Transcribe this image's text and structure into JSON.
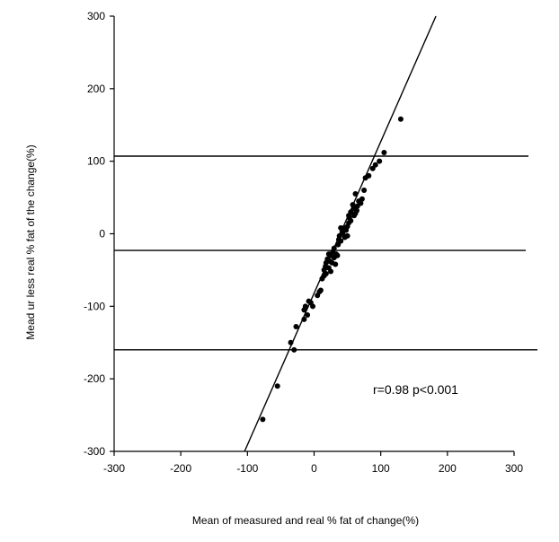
{
  "chart_data": {
    "type": "scatter",
    "xlabel": "Mean of measured and real % fat of change(%)",
    "ylabel": "Mead ur less real % fat of the change(%)",
    "xlim": [
      -300,
      300
    ],
    "ylim": [
      -300,
      300
    ],
    "xticks": [
      -300,
      -200,
      -100,
      0,
      100,
      200,
      300
    ],
    "yticks": [
      -300,
      -200,
      -100,
      0,
      100,
      200,
      300
    ],
    "annotation": "r=0.98 p<0.001",
    "grid": false,
    "reference_lines": [
      107,
      -23,
      -160
    ],
    "regression_line": {
      "slope": 2.09,
      "intercept": -82
    },
    "points": [
      [
        -77,
        -256
      ],
      [
        -55,
        -210
      ],
      [
        -35,
        -150
      ],
      [
        -30,
        -160
      ],
      [
        -27,
        -128
      ],
      [
        -15,
        -118
      ],
      [
        -15,
        -105
      ],
      [
        -13,
        -100
      ],
      [
        -10,
        -112
      ],
      [
        -8,
        -93
      ],
      [
        -5,
        -95
      ],
      [
        -2,
        -100
      ],
      [
        5,
        -85
      ],
      [
        8,
        -80
      ],
      [
        10,
        -78
      ],
      [
        12,
        -62
      ],
      [
        15,
        -58
      ],
      [
        15,
        -50
      ],
      [
        17,
        -45
      ],
      [
        18,
        -55
      ],
      [
        18,
        -40
      ],
      [
        20,
        -35
      ],
      [
        22,
        -47
      ],
      [
        22,
        -28
      ],
      [
        24,
        -38
      ],
      [
        25,
        -52
      ],
      [
        25,
        -30
      ],
      [
        27,
        -40
      ],
      [
        28,
        -25
      ],
      [
        30,
        -33
      ],
      [
        30,
        -20
      ],
      [
        32,
        -42
      ],
      [
        33,
        -28
      ],
      [
        35,
        -30
      ],
      [
        36,
        -15
      ],
      [
        37,
        -8
      ],
      [
        38,
        -3
      ],
      [
        40,
        -10
      ],
      [
        40,
        8
      ],
      [
        42,
        2
      ],
      [
        43,
        0
      ],
      [
        45,
        8
      ],
      [
        46,
        -5
      ],
      [
        48,
        5
      ],
      [
        50,
        10
      ],
      [
        50,
        -3
      ],
      [
        52,
        15
      ],
      [
        52,
        25
      ],
      [
        53,
        22
      ],
      [
        55,
        18
      ],
      [
        55,
        30
      ],
      [
        58,
        40
      ],
      [
        60,
        25
      ],
      [
        60,
        35
      ],
      [
        62,
        28
      ],
      [
        62,
        55
      ],
      [
        64,
        32
      ],
      [
        65,
        38
      ],
      [
        67,
        45
      ],
      [
        70,
        42
      ],
      [
        72,
        48
      ],
      [
        75,
        60
      ],
      [
        77,
        77
      ],
      [
        82,
        80
      ],
      [
        88,
        90
      ],
      [
        92,
        95
      ],
      [
        98,
        100
      ],
      [
        105,
        112
      ],
      [
        130,
        158
      ]
    ]
  }
}
